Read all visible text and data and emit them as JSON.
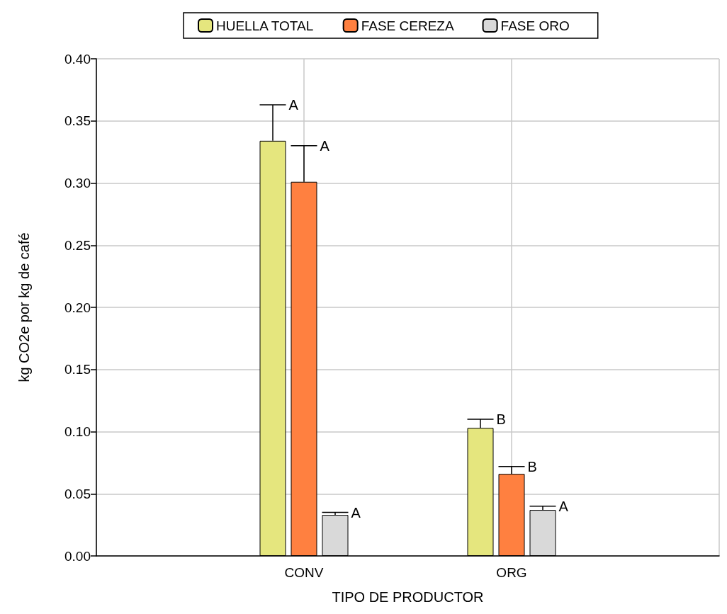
{
  "chart_data": {
    "type": "bar",
    "xlabel": "TIPO DE PRODUCTOR",
    "ylabel": "kg CO2e por kg de café",
    "categories": [
      null,
      "CONV",
      "ORG",
      null
    ],
    "series": [
      {
        "name": "HUELLA TOTAL",
        "color": "#e5e67e",
        "values": [
          null,
          0.334,
          0.103,
          null
        ],
        "errors": [
          null,
          [
            0.334,
            0.363
          ],
          [
            0.103,
            0.11
          ],
          null
        ],
        "value_labels": [
          null,
          "A",
          "B",
          null
        ]
      },
      {
        "name": "FASE CEREZA",
        "color": "#ff8040",
        "values": [
          null,
          0.301,
          0.066,
          null
        ],
        "errors": [
          null,
          [
            0.301,
            0.33
          ],
          [
            0.066,
            0.072
          ],
          null
        ],
        "value_labels": [
          null,
          "A",
          "B",
          null
        ]
      },
      {
        "name": "FASE ORO",
        "color": "#d9d9d9",
        "values": [
          null,
          0.033,
          0.037,
          null
        ],
        "errors": [
          null,
          [
            0.033,
            0.035
          ],
          [
            0.037,
            0.04
          ],
          null
        ],
        "value_labels": [
          null,
          "A",
          "A",
          null
        ]
      }
    ],
    "ylim": [
      0,
      0.4
    ],
    "yticks": [
      {
        "value": 0,
        "label": "0.00"
      },
      {
        "value": 0.05,
        "label": "0.05"
      },
      {
        "value": 0.1,
        "label": "0.10"
      },
      {
        "value": 0.15,
        "label": "0.15"
      },
      {
        "value": 0.2,
        "label": "0.20"
      },
      {
        "value": 0.25,
        "label": "0.25"
      },
      {
        "value": 0.3,
        "label": "0.30"
      },
      {
        "value": 0.35,
        "label": "0.35"
      },
      {
        "value": 0.4,
        "label": "0.40"
      }
    ],
    "grid": true,
    "legend": "top"
  }
}
